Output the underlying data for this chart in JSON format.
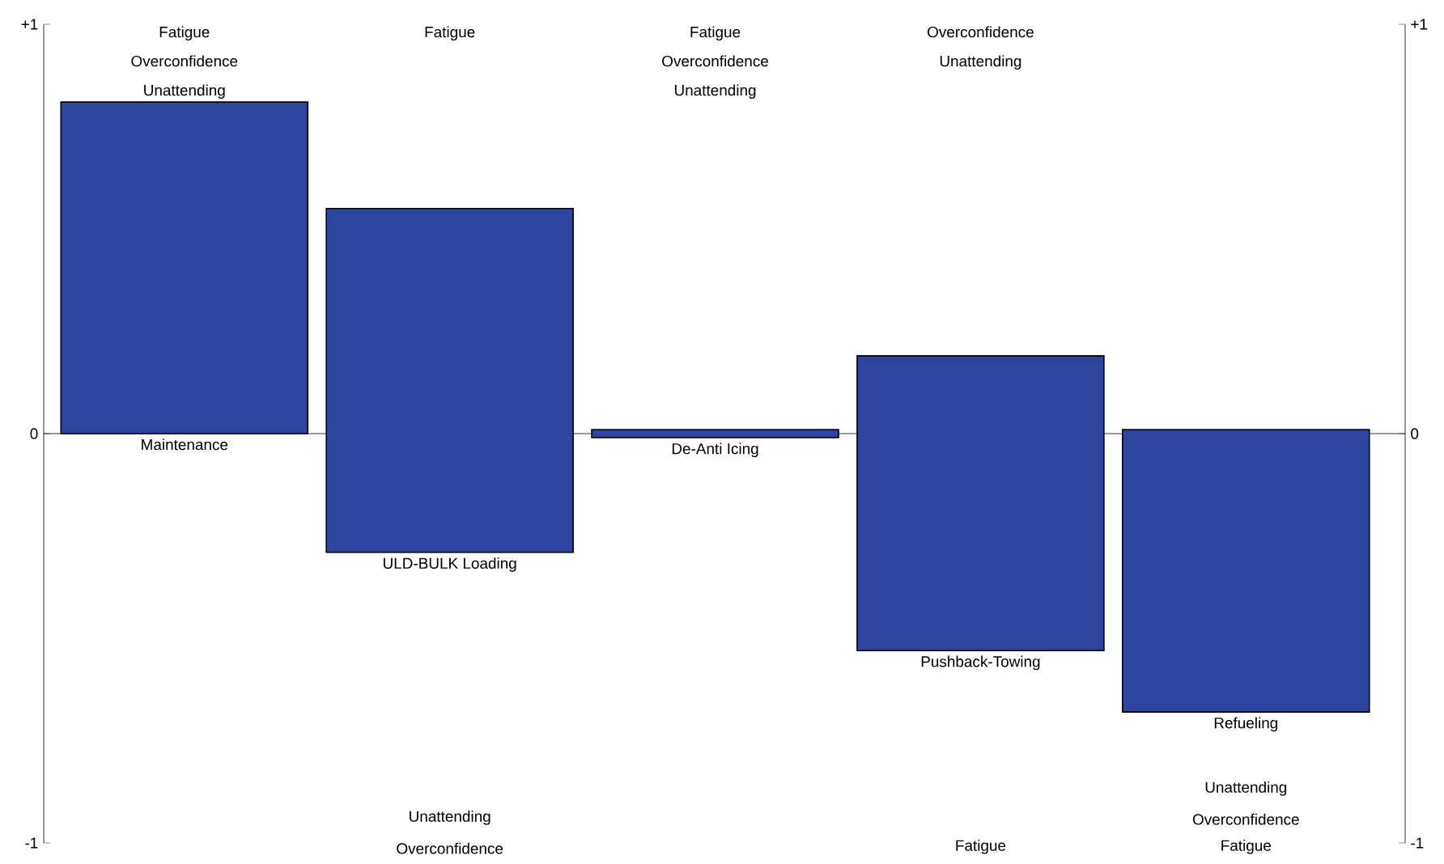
{
  "chart_data": {
    "type": "bar",
    "categories": [
      "Maintenance",
      "ULD-BULK Loading",
      "De-Anti Icing",
      "Pushback-Towing",
      "Refueling"
    ],
    "values": [
      0.81,
      0.84,
      0.02,
      0.72,
      0.69
    ],
    "base": [
      0,
      -0.29,
      -0.01,
      -0.53,
      -0.68
    ],
    "color": "#2e45a0",
    "ylim": [
      -1,
      1
    ],
    "yticks": [
      {
        "value": 1,
        "label": "+1"
      },
      0,
      -1
    ],
    "y2lim": [
      -1,
      1
    ],
    "y2ticks": [
      {
        "value": 1,
        "label": "+1"
      },
      0,
      -1
    ],
    "annotations": [
      "Fatigue",
      "Overconfidence",
      "Unattending",
      "Fatigue",
      "Fatigue",
      "Overconfidence",
      "Unattending",
      "Overconfidence",
      "Unattending",
      "Unattending",
      "Overconfidence",
      "Fatigue",
      "Unattending",
      "Overconfidence",
      "Fatigue"
    ]
  }
}
